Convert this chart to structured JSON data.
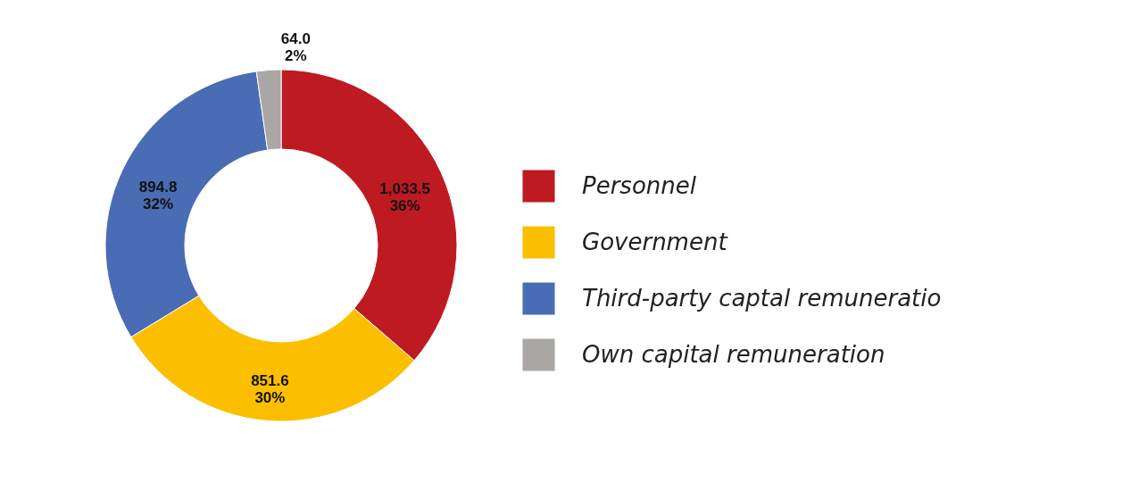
{
  "chart_data": {
    "type": "donut",
    "categories": [
      "Personnel",
      "Government",
      "Third-party captal remuneratio",
      "Own capital remuneration"
    ],
    "values": [
      1033.5,
      851.6,
      894.8,
      64.0
    ],
    "colors": [
      "#be1a22",
      "#fbbf00",
      "#4a6cb4",
      "#aaa6a4"
    ],
    "value_labels": [
      "1,033.5\n36%",
      "851.6\n30%",
      "894.8\n32%",
      "64.0\n2%"
    ],
    "legend": "right"
  }
}
